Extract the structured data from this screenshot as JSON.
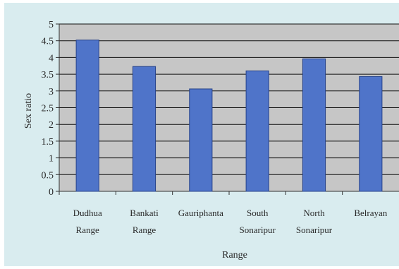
{
  "chart_data": {
    "type": "bar",
    "categories": [
      [
        "Dudhua",
        "Range"
      ],
      [
        "Bankati",
        "Range"
      ],
      [
        "Gauriphanta"
      ],
      [
        "South",
        "Sonaripur"
      ],
      [
        "North",
        "Sonaripur"
      ],
      [
        "Belrayan"
      ]
    ],
    "values": [
      4.52,
      3.73,
      3.06,
      3.6,
      3.96,
      3.43
    ],
    "ylim": [
      0,
      5
    ],
    "yticks": [
      "0",
      "0.5",
      "1",
      "1.5",
      "2",
      "2.5",
      "3",
      "3.5",
      "4",
      "4.5",
      "5"
    ],
    "xlabel": "Range",
    "ylabel": "Sex ratio",
    "grid": true,
    "legend": false,
    "colors": {
      "bar": "#4f74c9",
      "bar_edge": "#26428a",
      "plot_bg": "#c6c6c6",
      "grid": "#111111",
      "outer_bg": "#d9ecef"
    }
  }
}
